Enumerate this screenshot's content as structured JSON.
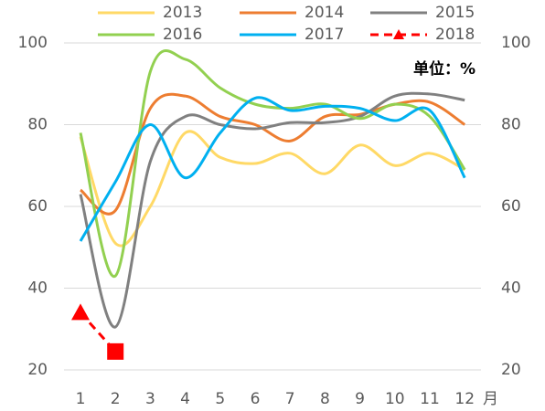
{
  "chart_data": {
    "type": "line",
    "unit_label": "单位：%",
    "x_unit": "月",
    "categories": [
      "1",
      "2",
      "3",
      "4",
      "5",
      "6",
      "7",
      "8",
      "9",
      "10",
      "11",
      "12"
    ],
    "series": [
      {
        "name": "2013",
        "color": "#ffd966",
        "values": [
          77,
          51,
          60,
          78,
          72,
          70.5,
          73,
          68,
          75,
          70,
          73,
          69
        ]
      },
      {
        "name": "2014",
        "color": "#ed7d31",
        "values": [
          64,
          59,
          84,
          87,
          82,
          80,
          76,
          82,
          82.5,
          85,
          85.5,
          80
        ]
      },
      {
        "name": "2015",
        "color": "#808080",
        "values": [
          63,
          30.5,
          71,
          82,
          80,
          79,
          80.5,
          80.5,
          82,
          87,
          87.5,
          86
        ]
      },
      {
        "name": "2016",
        "color": "#92d050",
        "values": [
          78,
          43,
          93,
          96,
          89,
          85,
          84,
          85,
          81.5,
          85,
          82,
          69
        ]
      },
      {
        "name": "2017",
        "color": "#00b0f0",
        "values": [
          51.5,
          66,
          80,
          67,
          78,
          86.5,
          83.5,
          84.5,
          84,
          81,
          83.5,
          67
        ]
      },
      {
        "name": "2018",
        "color": "#ff0000",
        "dashed": true,
        "markers": [
          "triangle",
          "square"
        ],
        "values": [
          34,
          24.5,
          null,
          null,
          null,
          null,
          null,
          null,
          null,
          null,
          null,
          null
        ]
      }
    ],
    "ylim": [
      20,
      100
    ],
    "yticks": [
      20,
      40,
      60,
      80,
      100
    ],
    "y2lim": [
      20,
      100
    ],
    "y2ticks": [
      20,
      40,
      60,
      80,
      100
    ],
    "grid": true,
    "smooth": true,
    "legend": "top"
  }
}
